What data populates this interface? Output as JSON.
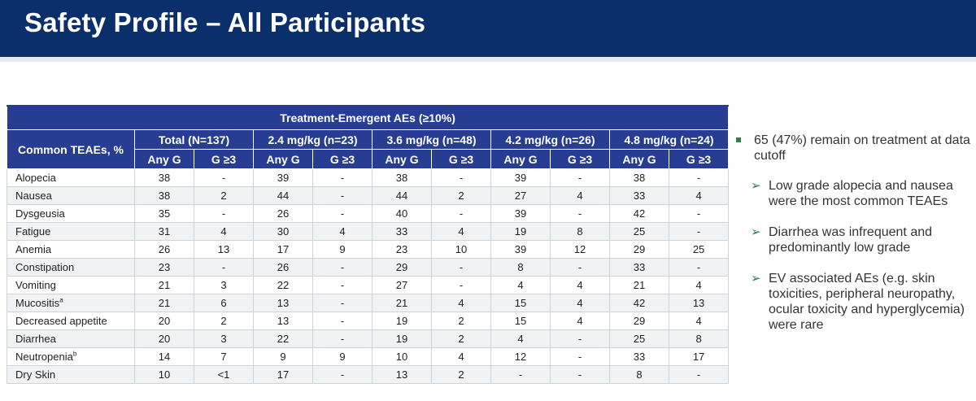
{
  "header": {
    "title": "Safety Profile – All Participants"
  },
  "table": {
    "title": "Treatment-Emergent AEs (≥10%)",
    "row_header": "Common TEAEs, %",
    "groups": [
      "Total (N=137)",
      "2.4 mg/kg (n=23)",
      "3.6 mg/kg (n=48)",
      "4.2 mg/kg (n=26)",
      "4.8 mg/kg (n=24)"
    ],
    "sub_headers": [
      "Any G",
      "G ≥3"
    ],
    "rows": [
      {
        "name": "Alopecia",
        "sup": "",
        "values": [
          "38",
          "-",
          "39",
          "-",
          "38",
          "-",
          "39",
          "-",
          "38",
          "-"
        ]
      },
      {
        "name": "Nausea",
        "sup": "",
        "values": [
          "38",
          "2",
          "44",
          "-",
          "44",
          "2",
          "27",
          "4",
          "33",
          "4"
        ]
      },
      {
        "name": "Dysgeusia",
        "sup": "",
        "values": [
          "35",
          "-",
          "26",
          "-",
          "40",
          "-",
          "39",
          "-",
          "42",
          "-"
        ]
      },
      {
        "name": "Fatigue",
        "sup": "",
        "values": [
          "31",
          "4",
          "30",
          "4",
          "33",
          "4",
          "19",
          "8",
          "25",
          "-"
        ]
      },
      {
        "name": "Anemia",
        "sup": "",
        "values": [
          "26",
          "13",
          "17",
          "9",
          "23",
          "10",
          "39",
          "12",
          "29",
          "25"
        ]
      },
      {
        "name": "Constipation",
        "sup": "",
        "values": [
          "23",
          "-",
          "26",
          "-",
          "29",
          "-",
          "8",
          "-",
          "33",
          "-"
        ]
      },
      {
        "name": "Vomiting",
        "sup": "",
        "values": [
          "21",
          "3",
          "22",
          "-",
          "27",
          "-",
          "4",
          "4",
          "21",
          "4"
        ]
      },
      {
        "name": "Mucositis",
        "sup": "a",
        "values": [
          "21",
          "6",
          "13",
          "-",
          "21",
          "4",
          "15",
          "4",
          "42",
          "13"
        ]
      },
      {
        "name": "Decreased appetite",
        "sup": "",
        "values": [
          "20",
          "2",
          "13",
          "-",
          "19",
          "2",
          "15",
          "4",
          "29",
          "4"
        ]
      },
      {
        "name": "Diarrhea",
        "sup": "",
        "values": [
          "20",
          "3",
          "22",
          "-",
          "19",
          "2",
          "4",
          "-",
          "25",
          "8"
        ]
      },
      {
        "name": "Neutropenia",
        "sup": "b",
        "values": [
          "14",
          "7",
          "9",
          "9",
          "10",
          "4",
          "12",
          "-",
          "33",
          "17"
        ]
      },
      {
        "name": "Dry Skin",
        "sup": "",
        "values": [
          "10",
          "<1",
          "17",
          "-",
          "13",
          "2",
          "-",
          "-",
          "8",
          "-"
        ]
      }
    ]
  },
  "notes": {
    "main": "65 (47%) remain on treatment at data cutoff",
    "bullets": [
      "Low grade alopecia and nausea were the most common TEAEs",
      "Diarrhea was infrequent and predominantly low grade",
      "EV associated AEs (e.g. skin toxicities, peripheral neuropathy, ocular toxicity and hyperglycemia) were rare"
    ],
    "main_bullet_icon": "square-bullet-icon",
    "sub_bullet_icon": "arrow-bullet-icon",
    "accent_color": "#2f7d4f"
  },
  "colors": {
    "header_bg": "#0b2f6b",
    "table_header_bg": "#263d93",
    "row_stripe": "#f1f2f4"
  }
}
